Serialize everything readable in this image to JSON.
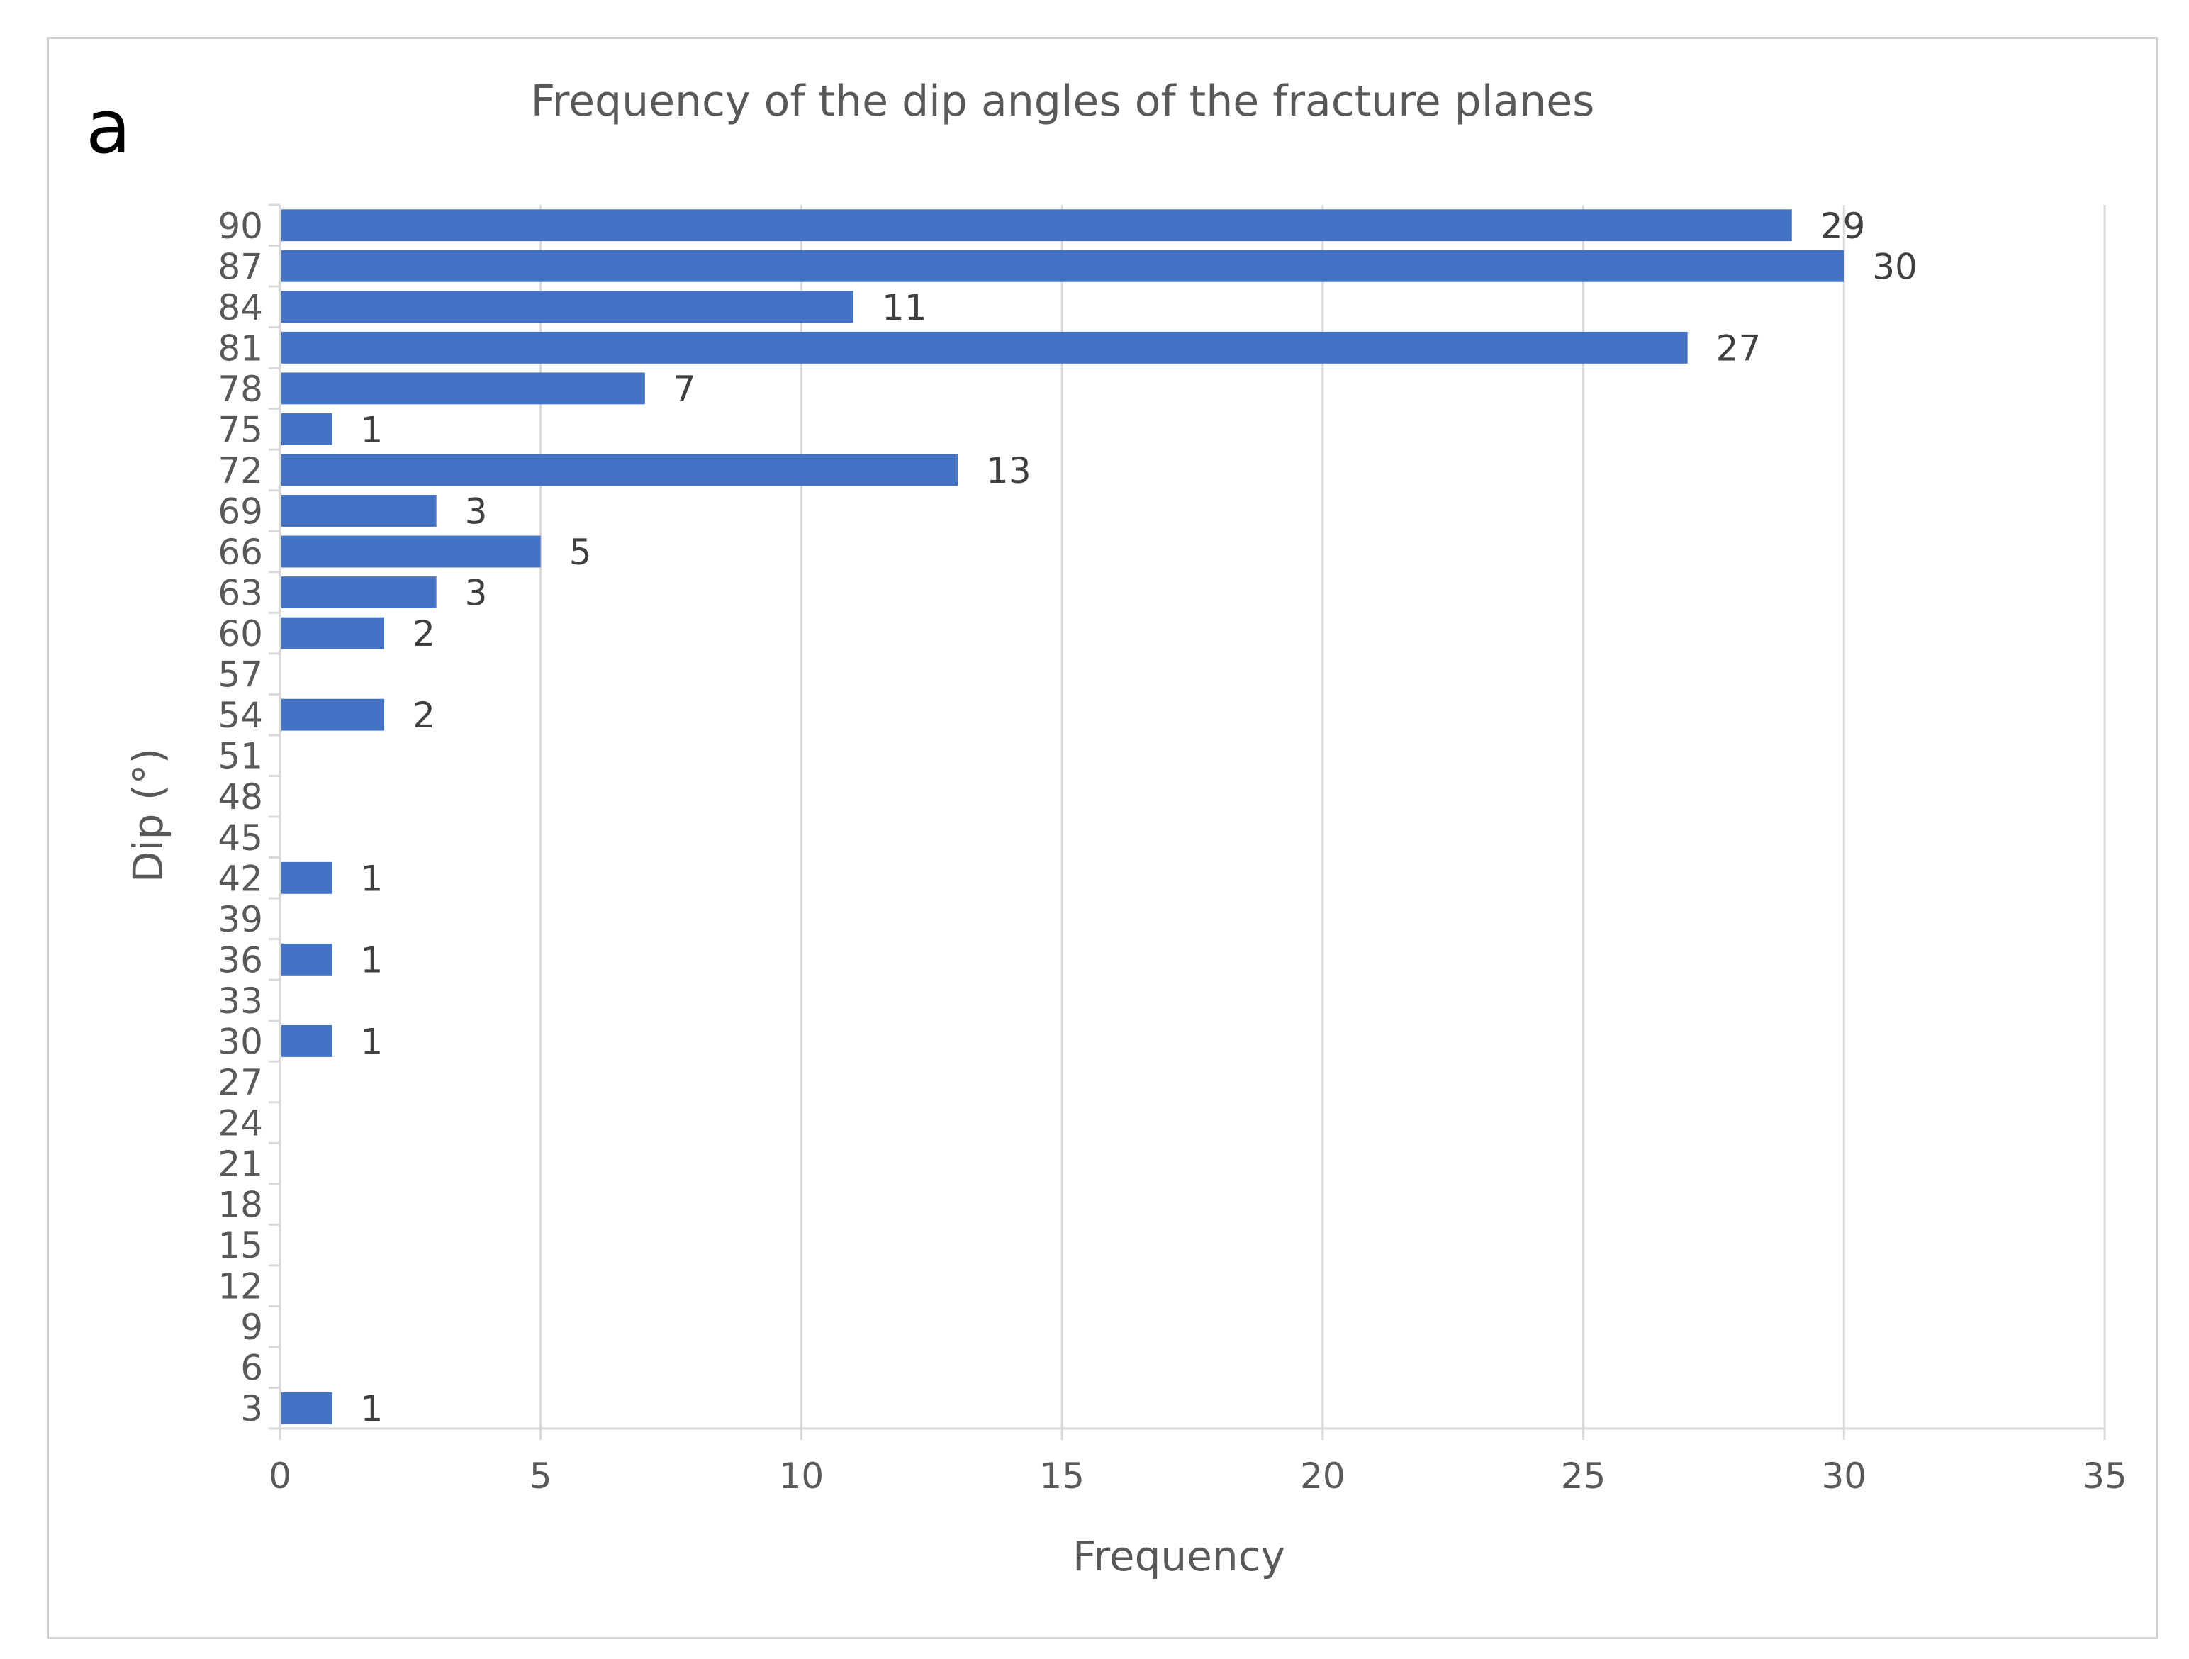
{
  "panel_label": "a",
  "colors": {
    "bar": "#4472c4",
    "grid": "#d9d9d9",
    "text": "#595959"
  },
  "chart_data": {
    "type": "bar",
    "orientation": "horizontal",
    "title": "Frequency of the dip angles of the fracture planes",
    "xlabel": "Frequency",
    "ylabel": "Dip (°)",
    "xlim": [
      0,
      35
    ],
    "x_ticks": [
      "0",
      "5",
      "10",
      "15",
      "20",
      "25",
      "30",
      "35"
    ],
    "grid": "vertical",
    "categories": [
      "90",
      "87",
      "84",
      "81",
      "78",
      "75",
      "72",
      "69",
      "66",
      "63",
      "60",
      "57",
      "54",
      "51",
      "48",
      "45",
      "42",
      "39",
      "36",
      "33",
      "30",
      "27",
      "24",
      "21",
      "18",
      "15",
      "12",
      "9",
      "6",
      "3"
    ],
    "values": [
      29,
      30,
      11,
      27,
      7,
      1,
      13,
      3,
      5,
      3,
      2,
      0,
      2,
      0,
      0,
      0,
      1,
      0,
      1,
      0,
      1,
      0,
      0,
      0,
      0,
      0,
      0,
      0,
      0,
      1
    ],
    "data_labels": [
      "29",
      "30",
      "11",
      "27",
      "7",
      "1",
      "13",
      "3",
      "5",
      "3",
      "2",
      "",
      "2",
      "",
      "",
      "",
      "1",
      "",
      "1",
      "",
      "1",
      "",
      "",
      "",
      "",
      "",
      "",
      "",
      "",
      "1"
    ]
  }
}
